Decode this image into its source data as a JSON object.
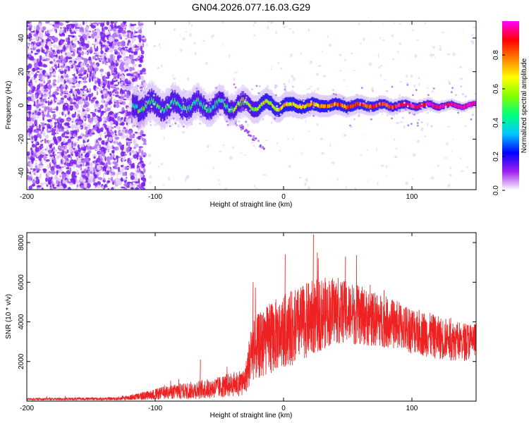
{
  "title": "GN04.2026.077.16.03.G29",
  "chart_data": [
    {
      "type": "heatmap",
      "xlabel": "Height of straight line (km)",
      "ylabel": "Frequency (Hz)",
      "xlim": [
        -200,
        150
      ],
      "ylim": [
        -50,
        50
      ],
      "xticks": [
        -200,
        -100,
        0,
        100
      ],
      "yticks": [
        -40,
        -20,
        0,
        20,
        40
      ],
      "colorbar": {
        "label": "Normalized spectral amplitude",
        "range": [
          0,
          1
        ],
        "ticks": [
          "0.0",
          "0.2",
          "0.4",
          "0.6",
          "0.8"
        ],
        "colors": [
          "#ffffff",
          "#a020f0",
          "#0000ff",
          "#00c8ff",
          "#00ff80",
          "#80ff00",
          "#ffff00",
          "#ff8000",
          "#ff0000",
          "#ff00ff"
        ]
      },
      "features": {
        "noise_region_x": [
          -200,
          -108
        ],
        "tone_start_x": -118,
        "tone_center_freq_hz": 0,
        "secondary_branch": {
          "x": [
            -45,
            -15
          ],
          "freq": [
            -5,
            -25
          ]
        }
      }
    },
    {
      "type": "line",
      "xlabel": "Height of straight line (km)",
      "ylabel": "SNR (10 * v/v)",
      "xlim": [
        -200,
        150
      ],
      "ylim": [
        0,
        8500
      ],
      "xticks": [
        -200,
        -100,
        0,
        100
      ],
      "yticks": [
        2000,
        4000,
        6000,
        8000
      ],
      "color": "#ee2222",
      "envelope": {
        "x": [
          -200,
          -130,
          -110,
          -90,
          -70,
          -50,
          -30,
          -25,
          -10,
          0,
          10,
          25,
          40,
          60,
          80,
          100,
          120,
          140,
          150
        ],
        "mean": [
          100,
          120,
          250,
          450,
          550,
          700,
          1000,
          2500,
          3200,
          3500,
          3800,
          4300,
          4600,
          4300,
          4000,
          3600,
          3200,
          3000,
          3100
        ],
        "spread": [
          60,
          80,
          200,
          350,
          450,
          550,
          700,
          1600,
          1800,
          1900,
          1900,
          1900,
          1700,
          1500,
          1300,
          1200,
          1100,
          1000,
          900
        ]
      },
      "peaks": [
        {
          "x": -65,
          "y": 2100
        },
        {
          "x": -24,
          "y": 6000
        },
        {
          "x": 1,
          "y": 7400
        },
        {
          "x": 23,
          "y": 8400
        },
        {
          "x": 48,
          "y": 7300
        },
        {
          "x": 78,
          "y": 5600
        },
        {
          "x": 130,
          "y": 4200
        }
      ]
    }
  ]
}
